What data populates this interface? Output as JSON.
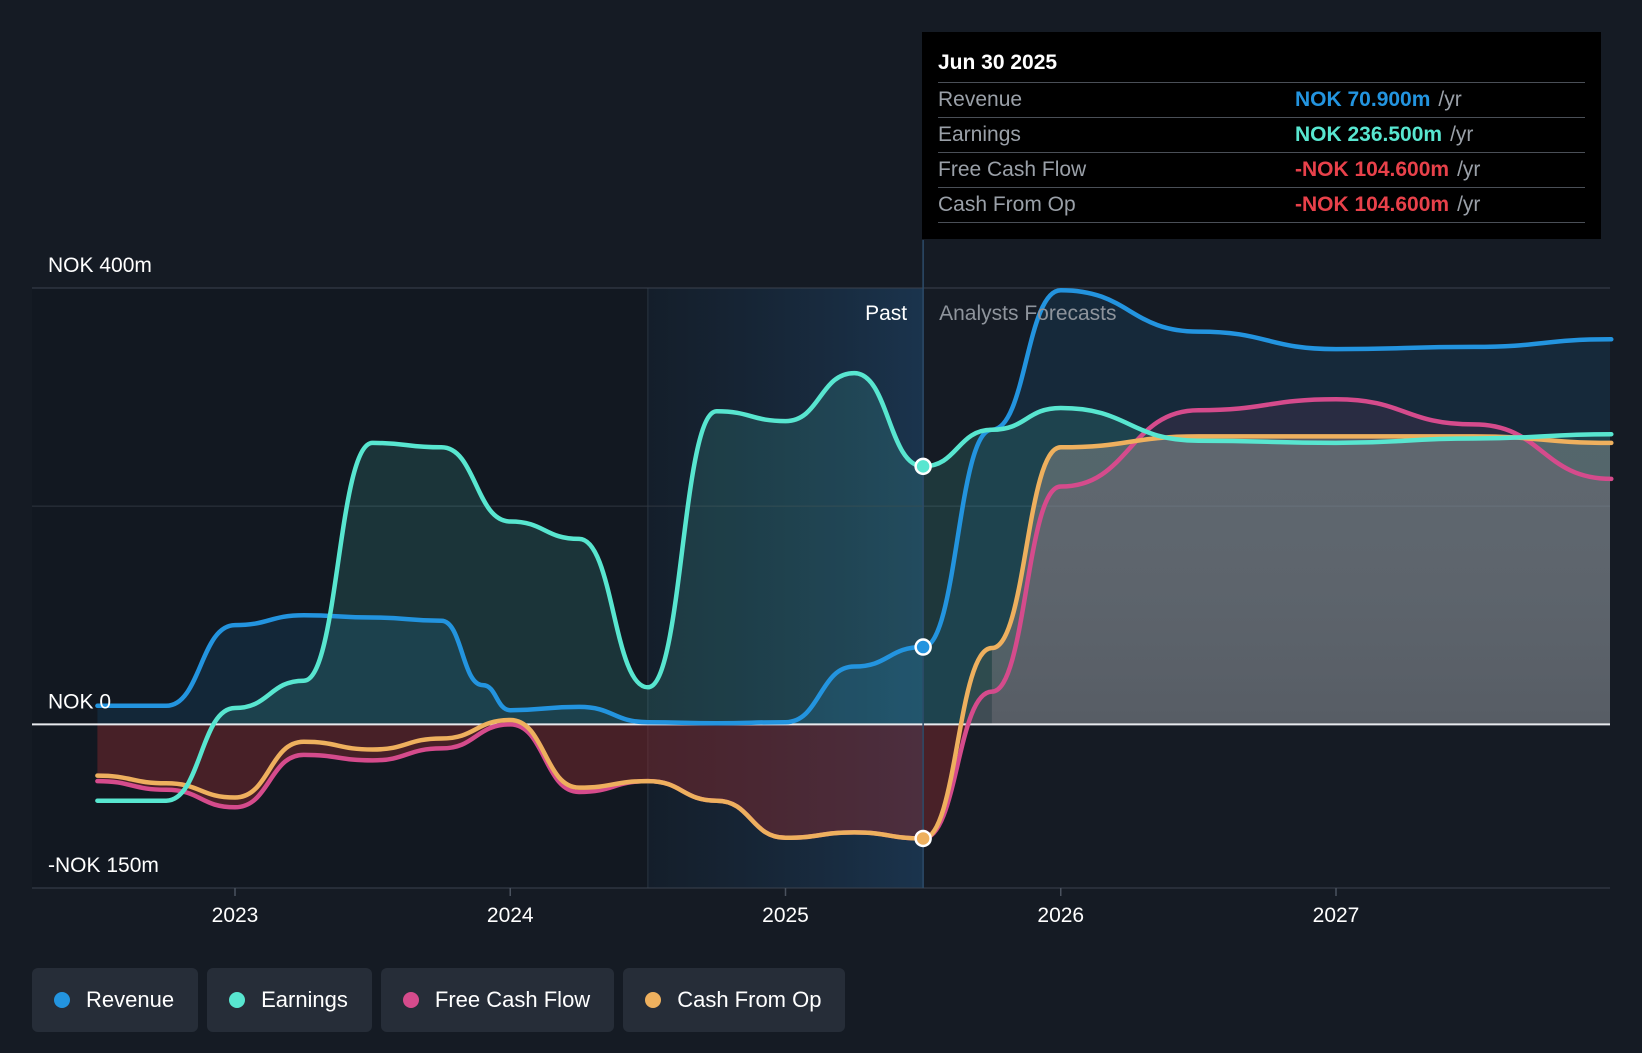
{
  "chart_data": {
    "type": "line",
    "title": "",
    "xlabel": "",
    "ylabel": "",
    "ylim": [
      -150,
      400
    ],
    "y_tick_labels": [
      {
        "value": 400,
        "label": "NOK 400m"
      },
      {
        "value": 0,
        "label": "NOK 0"
      },
      {
        "value": -150,
        "label": "-NOK 150m"
      }
    ],
    "x_ticks": [
      2023,
      2024,
      2025,
      2026,
      2027
    ],
    "past_label": "Past",
    "forecast_label": "Analysts Forecasts",
    "past_end": 2025.5,
    "grid": true,
    "series": [
      {
        "name": "Revenue",
        "color": "#2394df",
        "x": [
          2022.5,
          2022.75,
          2023.0,
          2023.25,
          2023.5,
          2023.75,
          2023.9,
          2024.0,
          2024.25,
          2024.5,
          2024.75,
          2025.0,
          2025.25,
          2025.5,
          2025.75,
          2026.0,
          2026.5,
          2027.0,
          2027.5,
          2028.0
        ],
        "y": [
          17,
          17,
          91,
          100,
          98,
          95,
          36,
          13,
          16,
          2,
          1,
          2,
          53,
          70.9,
          270,
          398,
          360,
          344,
          346,
          353
        ]
      },
      {
        "name": "Earnings",
        "color": "#58e6d0",
        "x": [
          2022.5,
          2022.75,
          2023.0,
          2023.25,
          2023.5,
          2023.75,
          2024.0,
          2024.25,
          2024.5,
          2024.75,
          2025.0,
          2025.25,
          2025.5,
          2025.75,
          2026.0,
          2026.5,
          2027.0,
          2027.5,
          2028.0
        ],
        "y": [
          -70,
          -70,
          15,
          40,
          258,
          254,
          186,
          170,
          34,
          287,
          278,
          322,
          236.5,
          270,
          290,
          260,
          258,
          262,
          266
        ]
      },
      {
        "name": "Free Cash Flow",
        "color": "#d54b8c",
        "x": [
          2022.5,
          2022.75,
          2023.0,
          2023.25,
          2023.5,
          2023.75,
          2024.0,
          2024.25,
          2024.5,
          2024.75,
          2025.0,
          2025.25,
          2025.5,
          2025.75,
          2026.0,
          2026.5,
          2027.0,
          2027.5,
          2028.0
        ],
        "y": [
          -52,
          -60,
          -76,
          -28,
          -33,
          -22,
          0,
          -62,
          -52,
          -70,
          -104,
          -99,
          -104.6,
          30,
          218,
          288,
          298,
          275,
          225
        ]
      },
      {
        "name": "Cash From Op",
        "color": "#eeb05e",
        "x": [
          2022.5,
          2022.75,
          2023.0,
          2023.25,
          2023.5,
          2023.75,
          2024.0,
          2024.25,
          2024.5,
          2024.75,
          2025.0,
          2025.25,
          2025.5,
          2025.75,
          2026.0,
          2026.5,
          2027.0,
          2027.5,
          2028.0
        ],
        "y": [
          -47,
          -54,
          -67,
          -16,
          -23,
          -13,
          4,
          -58,
          -52,
          -70,
          -104,
          -99,
          -104.6,
          70,
          254,
          264,
          264,
          264,
          258
        ]
      }
    ]
  },
  "tooltip": {
    "date": "Jun 30 2025",
    "rows": [
      {
        "label": "Revenue",
        "value": "NOK 70.900m",
        "unit": "/yr",
        "color": "#2394df"
      },
      {
        "label": "Earnings",
        "value": "NOK 236.500m",
        "unit": "/yr",
        "color": "#58e6d0"
      },
      {
        "label": "Free Cash Flow",
        "value": "-NOK 104.600m",
        "unit": "/yr",
        "color": "#e8414a"
      },
      {
        "label": "Cash From Op",
        "value": "-NOK 104.600m",
        "unit": "/yr",
        "color": "#e8414a"
      }
    ]
  },
  "legend": [
    {
      "label": "Revenue",
      "color": "#2394df"
    },
    {
      "label": "Earnings",
      "color": "#58e6d0"
    },
    {
      "label": "Free Cash Flow",
      "color": "#d54b8c"
    },
    {
      "label": "Cash From Op",
      "color": "#eeb05e"
    }
  ]
}
